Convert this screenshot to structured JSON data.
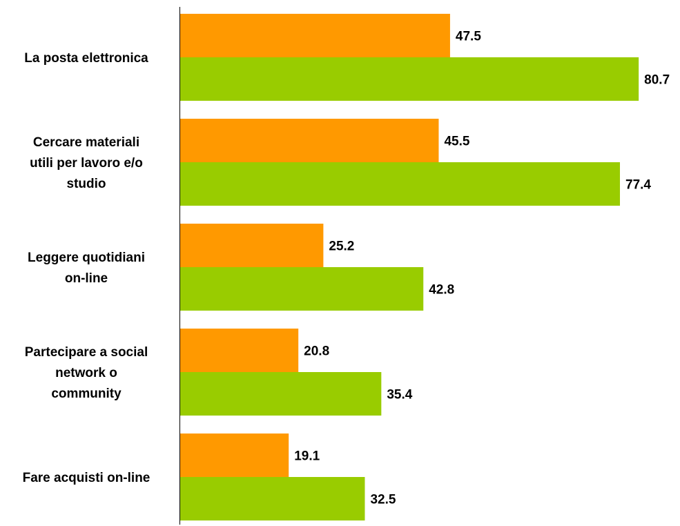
{
  "chart_data": {
    "type": "bar",
    "orientation": "horizontal",
    "categories": [
      [
        "La posta elettronica"
      ],
      [
        "Cercare materiali",
        "utili per lavoro e/o",
        "studio"
      ],
      [
        "Leggere quotidiani",
        "on-line"
      ],
      [
        "Partecipare a social",
        "network o",
        "community"
      ],
      [
        "Fare acquisti on-line"
      ]
    ],
    "series": [
      {
        "color": "#ff9900",
        "values": [
          47.5,
          45.5,
          25.2,
          20.8,
          19.1
        ]
      },
      {
        "color": "#99cc00",
        "values": [
          80.7,
          77.4,
          42.8,
          35.4,
          32.5
        ]
      }
    ],
    "value_labels": {
      "series_0": [
        "47.5",
        "45.5",
        "25.2",
        "20.8",
        "19.1"
      ],
      "series_1": [
        "80.7",
        "77.4",
        "42.8",
        "35.4",
        "32.5"
      ]
    },
    "title": "",
    "xlabel": "",
    "ylabel": "",
    "xlim": [
      0,
      100
    ],
    "grid": false,
    "legend": "none"
  }
}
